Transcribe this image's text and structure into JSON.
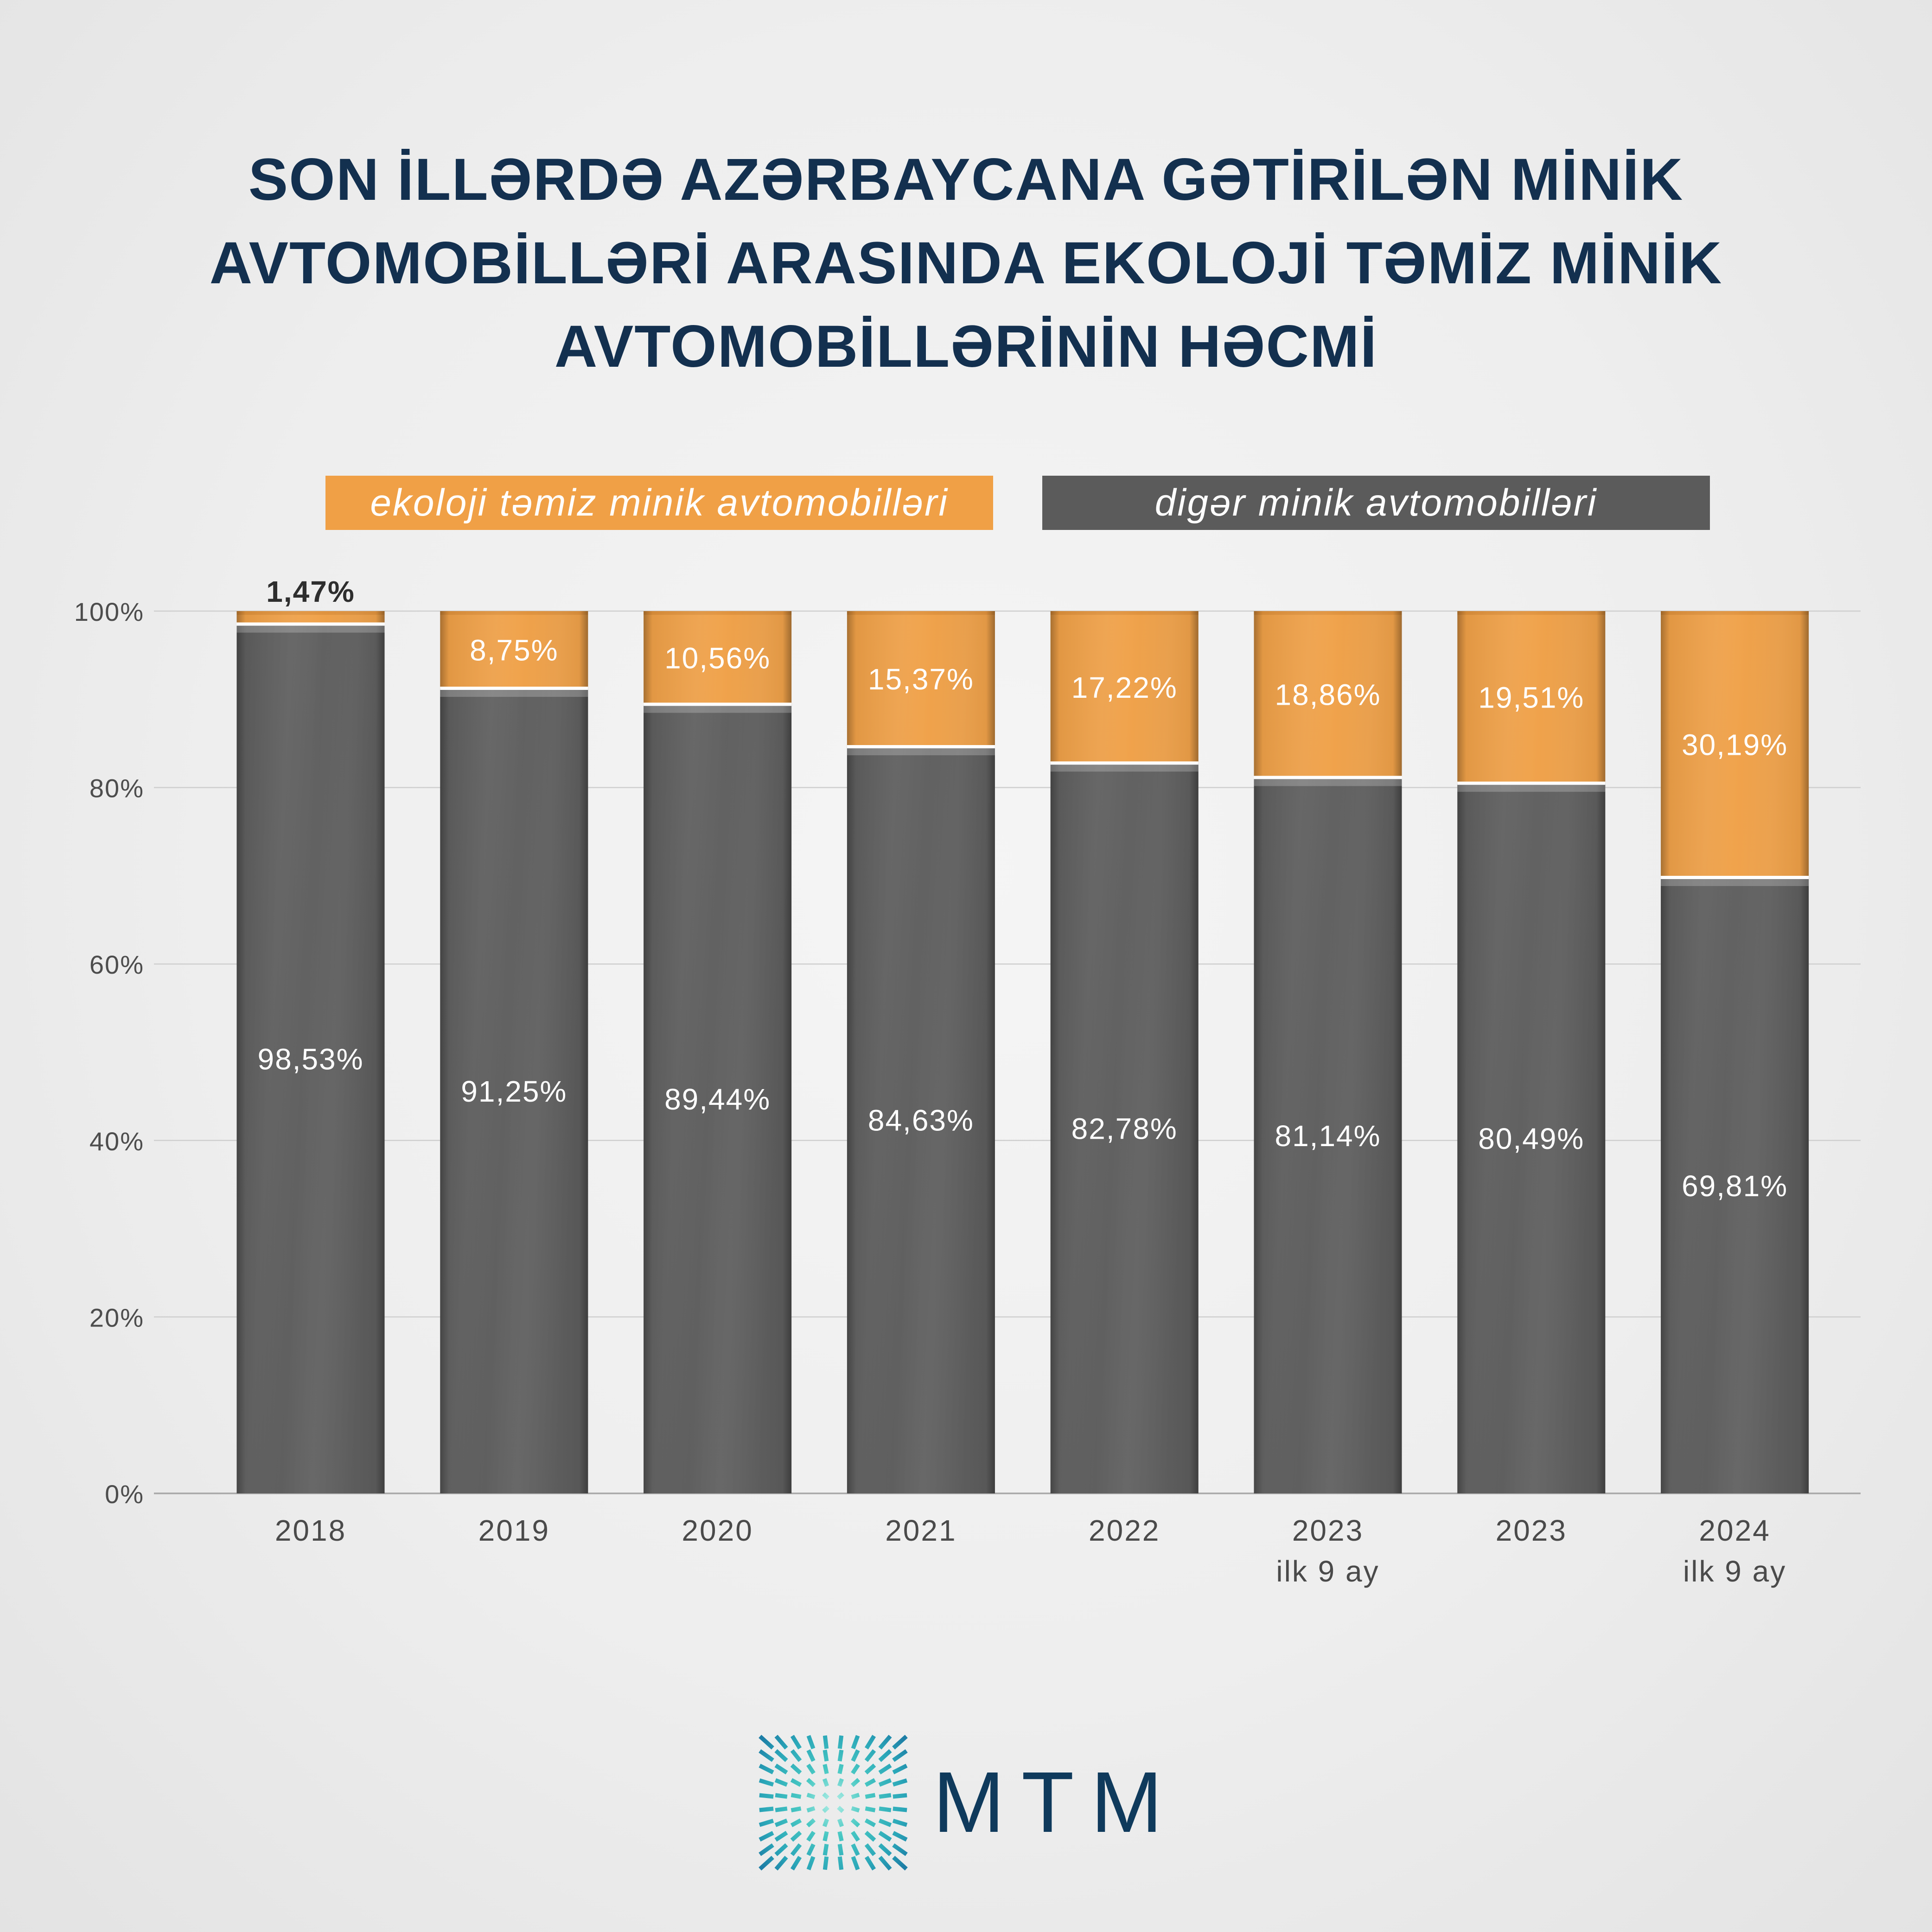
{
  "colors": {
    "background": "#ececec",
    "title": "#13304f",
    "logo_text": "#0f3a5c",
    "logo_accent": "#38c0c0"
  },
  "chart_data": {
    "type": "bar",
    "stacked": true,
    "title": "SON İLLƏRDƏ AZƏRBAYCANA GƏTİRİLƏN MİNİK\nAVTOMOBİLLƏRİ ARASINDA EKOLOJİ TƏMİZ MİNİK\nAVTOMOBİLLƏRİNİN HƏCMİ",
    "categories": [
      "2018",
      "2019",
      "2020",
      "2021",
      "2022",
      "2023\nilk 9 ay",
      "2023",
      "2024\nilk 9 ay"
    ],
    "series": [
      {
        "name": "ekoloji təmiz minik avtomobilləri",
        "color": "#f0a046",
        "values": [
          1.47,
          8.75,
          10.56,
          15.37,
          17.22,
          18.86,
          19.51,
          30.19
        ],
        "labels": [
          "1,47%",
          "8,75%",
          "10,56%",
          "15,37%",
          "17,22%",
          "18,86%",
          "19,51%",
          "30,19%"
        ]
      },
      {
        "name": "digər minik avtomobilləri",
        "color": "#5d5d5d",
        "values": [
          98.53,
          91.25,
          89.44,
          84.63,
          82.78,
          81.14,
          80.49,
          69.81
        ],
        "labels": [
          "98,53%",
          "91,25%",
          "89,44%",
          "84,63%",
          "82,78%",
          "81,14%",
          "80,49%",
          "69,81%"
        ]
      }
    ],
    "yticks": [
      {
        "value": 0,
        "label": "0%"
      },
      {
        "value": 20,
        "label": "20%"
      },
      {
        "value": 40,
        "label": "40%"
      },
      {
        "value": 60,
        "label": "60%"
      },
      {
        "value": 80,
        "label": "80%"
      },
      {
        "value": 100,
        "label": "100%"
      }
    ],
    "ylim": [
      0,
      100
    ],
    "grid": true,
    "legend_position": "top"
  },
  "logo": {
    "text": "MTM",
    "icon": "mtm-sunburst-icon"
  }
}
